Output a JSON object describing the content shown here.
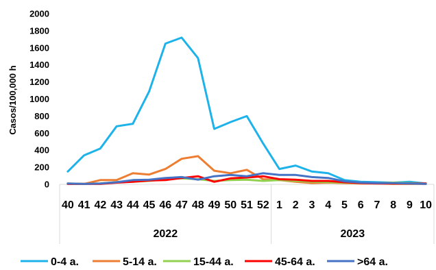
{
  "chart_data": {
    "type": "line",
    "ylabel": "Casos/100,000 h",
    "ylim": [
      0,
      2000
    ],
    "yticks": [
      0,
      200,
      400,
      600,
      800,
      1000,
      1200,
      1400,
      1600,
      1800,
      2000
    ],
    "x": [
      "40",
      "41",
      "42",
      "43",
      "44",
      "45",
      "46",
      "47",
      "48",
      "49",
      "50",
      "51",
      "52",
      "1",
      "2",
      "3",
      "4",
      "5",
      "6",
      "7",
      "8",
      "9",
      "10"
    ],
    "year_groups": [
      {
        "label": "2022",
        "count": 13
      },
      {
        "label": "2023",
        "count": 10
      }
    ],
    "grid": false,
    "legend_position": "bottom",
    "series": [
      {
        "name": "0-4 a.",
        "color": "#1eb2ea",
        "values": [
          150,
          340,
          420,
          680,
          710,
          1090,
          1650,
          1720,
          1480,
          650,
          730,
          800,
          480,
          180,
          220,
          150,
          130,
          50,
          30,
          25,
          20,
          30,
          10
        ]
      },
      {
        "name": "5-14 a.",
        "color": "#ed7d31",
        "values": [
          10,
          5,
          50,
          50,
          130,
          115,
          180,
          300,
          330,
          160,
          130,
          170,
          60,
          50,
          30,
          15,
          20,
          15,
          10,
          10,
          5,
          5,
          5
        ]
      },
      {
        "name": "15-44 a.",
        "color": "#92d050",
        "values": [
          5,
          5,
          10,
          25,
          30,
          40,
          60,
          70,
          60,
          40,
          50,
          55,
          40,
          50,
          40,
          30,
          25,
          20,
          15,
          15,
          20,
          15,
          10
        ]
      },
      {
        "name": "45-64 a.",
        "color": "#ff0000",
        "values": [
          5,
          5,
          5,
          20,
          30,
          45,
          50,
          75,
          95,
          30,
          70,
          80,
          95,
          60,
          55,
          40,
          40,
          25,
          15,
          10,
          10,
          10,
          10
        ]
      },
      {
        "name": ">64 a.",
        "color": "#4472c4",
        "values": [
          10,
          5,
          10,
          25,
          50,
          55,
          75,
          85,
          55,
          95,
          110,
          95,
          130,
          110,
          110,
          85,
          75,
          35,
          20,
          15,
          15,
          10,
          5
        ]
      }
    ]
  }
}
